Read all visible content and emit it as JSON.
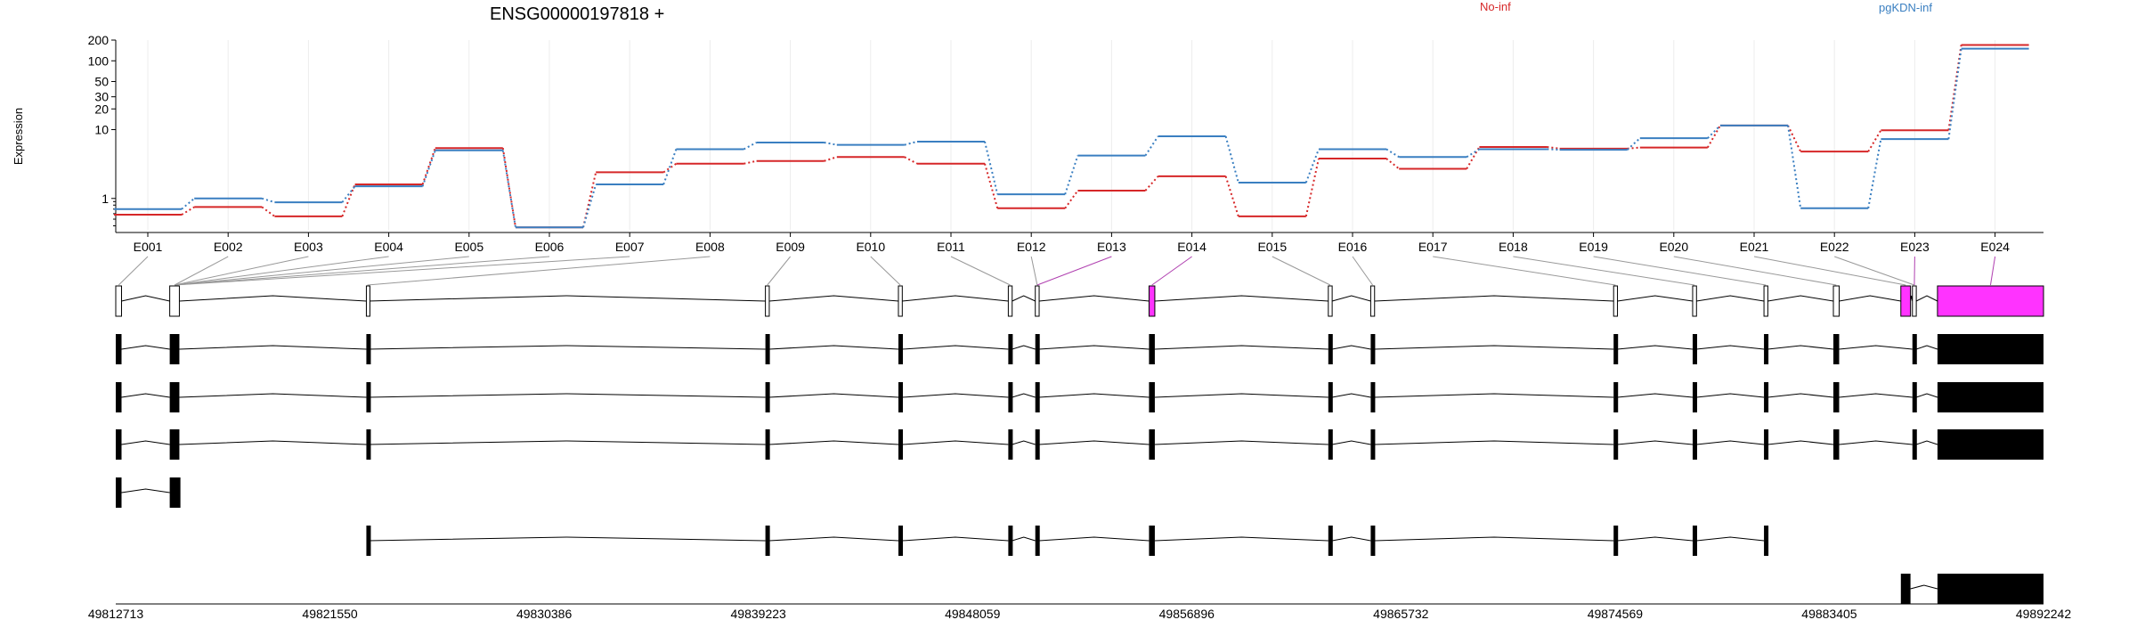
{
  "chart_data": {
    "type": "line",
    "title": "ENSG00000197818 +",
    "ylabel": "Expression",
    "xlabel": "",
    "yscale": "log",
    "ylim": [
      0.35,
      200
    ],
    "yticks": [
      1,
      10,
      20,
      30,
      50,
      100,
      200
    ],
    "grid": true,
    "legend_placement": "top",
    "categories": [
      "E001",
      "E002",
      "E003",
      "E004",
      "E005",
      "E006",
      "E007",
      "E008",
      "E009",
      "E010",
      "E011",
      "E012",
      "E013",
      "E014",
      "E015",
      "E016",
      "E017",
      "E018",
      "E019",
      "E020",
      "E021",
      "E022",
      "E023",
      "E024"
    ],
    "series": [
      {
        "name": "No-inf",
        "color": "#d62728",
        "values": [
          0.58,
          0.75,
          0.55,
          1.6,
          5.4,
          0.38,
          2.4,
          3.2,
          3.5,
          4.0,
          3.2,
          0.72,
          1.3,
          2.1,
          0.55,
          3.8,
          2.7,
          5.6,
          5.3,
          5.5,
          11.5,
          4.8,
          9.8,
          170
        ]
      },
      {
        "name": "pgKDN-inf",
        "color": "#3a7fc1",
        "values": [
          0.7,
          1.0,
          0.88,
          1.5,
          5.0,
          0.38,
          1.6,
          5.2,
          6.5,
          6.0,
          6.7,
          1.15,
          4.2,
          8.0,
          1.7,
          5.2,
          4.0,
          5.2,
          5.1,
          7.5,
          11.5,
          0.72,
          7.3,
          150
        ]
      }
    ],
    "genome": {
      "axis_ticks": [
        "49812713",
        "49821550",
        "49830386",
        "49839223",
        "49848059",
        "49856896",
        "49865732",
        "49874569",
        "49883405",
        "49892242"
      ],
      "highlight_color": "#ff33ff"
    }
  }
}
